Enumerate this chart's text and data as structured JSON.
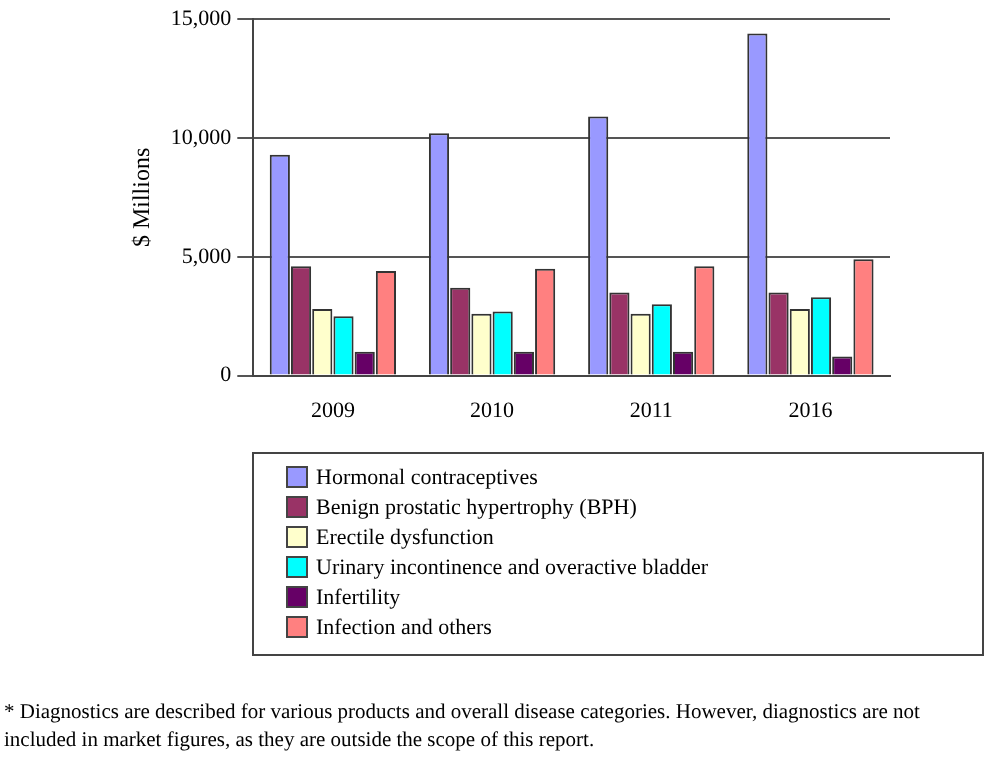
{
  "chart_data": {
    "type": "bar",
    "ylabel": "$ Millions",
    "categories": [
      "2009",
      "2010",
      "2011",
      "2016"
    ],
    "series": [
      {
        "name": "Hormonal contraceptives",
        "color": "#9999ff",
        "values": [
          9300,
          10200,
          10900,
          14400
        ]
      },
      {
        "name": "Benign prostatic hypertrophy (BPH)",
        "color": "#993366",
        "values": [
          4600,
          3700,
          3500,
          3500
        ]
      },
      {
        "name": "Erectile dysfunction",
        "color": "#ffffcc",
        "values": [
          2800,
          2600,
          2600,
          2800
        ]
      },
      {
        "name": "Urinary incontinence and overactive bladder",
        "color": "#00ffff",
        "values": [
          2500,
          2700,
          3000,
          3300
        ]
      },
      {
        "name": "Infertility",
        "color": "#660066",
        "values": [
          1000,
          1000,
          1000,
          800
        ]
      },
      {
        "name": "Infection and others",
        "color": "#ff8080",
        "values": [
          4400,
          4500,
          4600,
          4900
        ]
      }
    ],
    "ylim": [
      0,
      15000
    ],
    "yticks": [
      {
        "value": 0,
        "label": "0"
      },
      {
        "value": 5000,
        "label": "5,000"
      },
      {
        "value": 10000,
        "label": "10,000"
      },
      {
        "value": 15000,
        "label": "15,000"
      }
    ],
    "grid": "y",
    "legend": "bottom",
    "annotations": [
      "* Diagnostics are described for various products and overall disease categories.  However, diagnostics are not included in market figures, as they are outside the scope of this report."
    ]
  }
}
